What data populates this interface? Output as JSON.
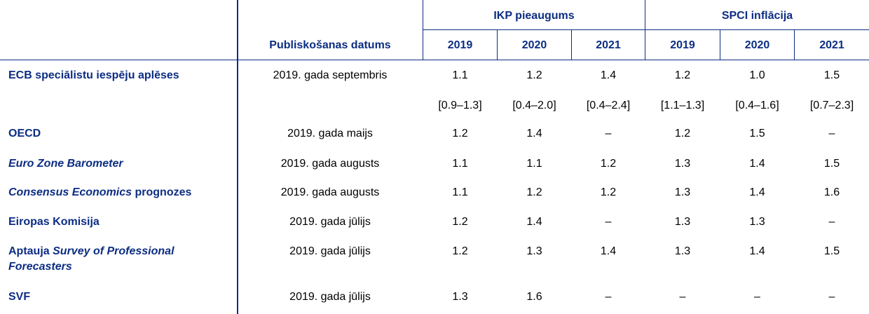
{
  "header": {
    "group_gdp": "IKP pieaugums",
    "group_hicp": "SPCI inflācija",
    "pub_date": "Publiskošanas datums",
    "years": [
      "2019",
      "2020",
      "2021",
      "2019",
      "2020",
      "2021"
    ]
  },
  "rows": [
    {
      "label_parts": [
        {
          "text": "ECB speciālistu iespēju aplēses",
          "italic": false
        }
      ],
      "date": "2019. gada septembris",
      "values": [
        "1.1",
        "1.2",
        "1.4",
        "1.2",
        "1.0",
        "1.5"
      ]
    },
    {
      "label_parts": [],
      "date": "",
      "values": [
        "[0.9–1.3]",
        "[0.4–2.0]",
        "[0.4–2.4]",
        "[1.1–1.3]",
        "[0.4–1.6]",
        "[0.7–2.3]"
      ]
    },
    {
      "label_parts": [
        {
          "text": "OECD",
          "italic": false
        }
      ],
      "date": "2019. gada maijs",
      "values": [
        "1.2",
        "1.4",
        "–",
        "1.2",
        "1.5",
        "–"
      ]
    },
    {
      "label_parts": [
        {
          "text": "Euro Zone Barometer",
          "italic": true
        }
      ],
      "date": "2019. gada augusts",
      "values": [
        "1.1",
        "1.1",
        "1.2",
        "1.3",
        "1.4",
        "1.5"
      ]
    },
    {
      "label_parts": [
        {
          "text": "Consensus Economics",
          "italic": true
        },
        {
          "text": " prognozes",
          "italic": false
        }
      ],
      "date": "2019. gada augusts",
      "values": [
        "1.1",
        "1.2",
        "1.2",
        "1.3",
        "1.4",
        "1.6"
      ]
    },
    {
      "label_parts": [
        {
          "text": "Eiropas Komisija",
          "italic": false
        }
      ],
      "date": "2019. gada jūlijs",
      "values": [
        "1.2",
        "1.4",
        "–",
        "1.3",
        "1.3",
        "–"
      ]
    },
    {
      "label_parts": [
        {
          "text": "Aptauja ",
          "italic": false
        },
        {
          "text": "Survey of Professional Forecasters",
          "italic": true
        }
      ],
      "date": "2019. gada jūlijs",
      "values": [
        "1.2",
        "1.3",
        "1.4",
        "1.3",
        "1.4",
        "1.5"
      ]
    },
    {
      "label_parts": [
        {
          "text": "SVF",
          "italic": false
        }
      ],
      "date": "2019. gada jūlijs",
      "values": [
        "1.3",
        "1.6",
        "–",
        "–",
        "–",
        "–"
      ]
    }
  ]
}
